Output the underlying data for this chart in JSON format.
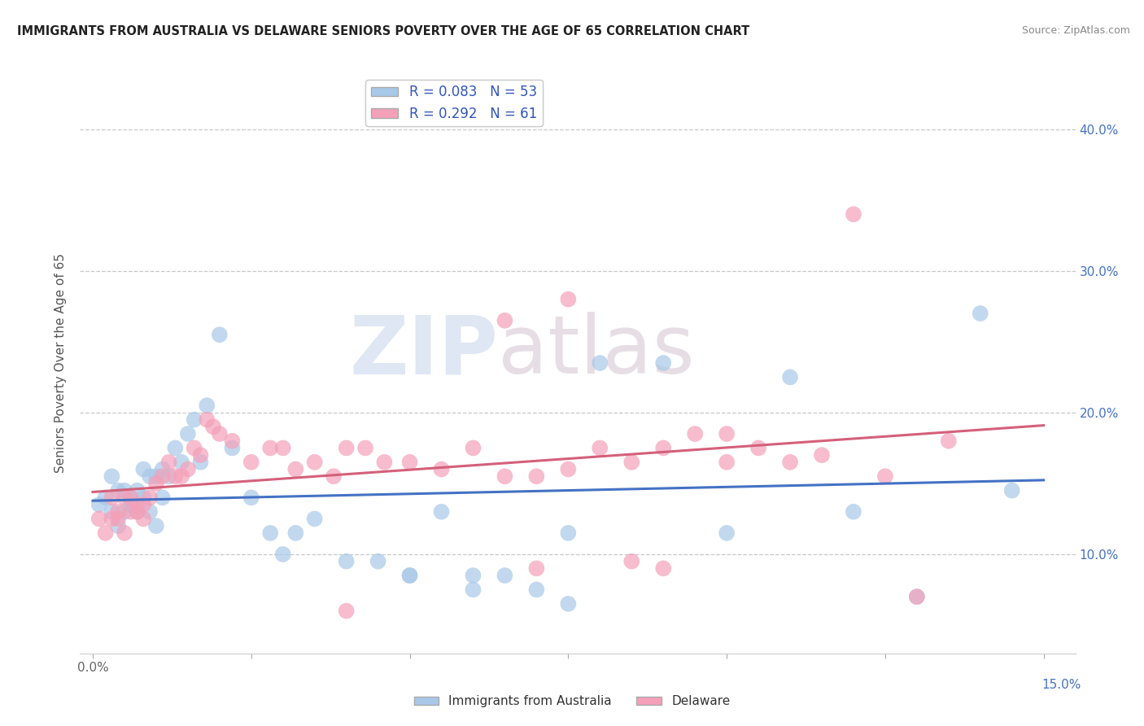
{
  "title": "IMMIGRANTS FROM AUSTRALIA VS DELAWARE SENIORS POVERTY OVER THE AGE OF 65 CORRELATION CHART",
  "source": "Source: ZipAtlas.com",
  "ylabel": "Seniors Poverty Over the Age of 65",
  "y_ticks": [
    0.1,
    0.2,
    0.3,
    0.4
  ],
  "y_tick_labels": [
    "10.0%",
    "20.0%",
    "30.0%",
    "40.0%"
  ],
  "xlim": [
    -0.002,
    0.155
  ],
  "ylim": [
    0.03,
    0.44
  ],
  "r_blue": 0.083,
  "n_blue": 53,
  "r_pink": 0.292,
  "n_pink": 61,
  "legend_label_blue": "Immigrants from Australia",
  "legend_label_pink": "Delaware",
  "color_blue": "#a8c8e8",
  "color_pink": "#f4a0b8",
  "color_blue_line": "#4472c4",
  "color_pink_line": "#d4607a",
  "blue_scatter_x": [
    0.001,
    0.002,
    0.003,
    0.003,
    0.004,
    0.004,
    0.005,
    0.005,
    0.006,
    0.006,
    0.007,
    0.007,
    0.008,
    0.008,
    0.009,
    0.009,
    0.01,
    0.01,
    0.011,
    0.011,
    0.012,
    0.013,
    0.014,
    0.015,
    0.016,
    0.017,
    0.018,
    0.02,
    0.022,
    0.025,
    0.028,
    0.03,
    0.032,
    0.035,
    0.04,
    0.045,
    0.05,
    0.055,
    0.06,
    0.065,
    0.07,
    0.075,
    0.08,
    0.09,
    0.1,
    0.11,
    0.12,
    0.13,
    0.14,
    0.145,
    0.05,
    0.06,
    0.075
  ],
  "blue_scatter_y": [
    0.135,
    0.14,
    0.13,
    0.155,
    0.12,
    0.145,
    0.13,
    0.145,
    0.135,
    0.14,
    0.13,
    0.145,
    0.14,
    0.16,
    0.13,
    0.155,
    0.12,
    0.155,
    0.14,
    0.16,
    0.155,
    0.175,
    0.165,
    0.185,
    0.195,
    0.165,
    0.205,
    0.255,
    0.175,
    0.14,
    0.115,
    0.1,
    0.115,
    0.125,
    0.095,
    0.095,
    0.085,
    0.13,
    0.085,
    0.085,
    0.075,
    0.115,
    0.235,
    0.235,
    0.115,
    0.225,
    0.13,
    0.07,
    0.27,
    0.145,
    0.085,
    0.075,
    0.065
  ],
  "pink_scatter_x": [
    0.001,
    0.002,
    0.003,
    0.003,
    0.004,
    0.004,
    0.005,
    0.005,
    0.006,
    0.006,
    0.007,
    0.007,
    0.008,
    0.008,
    0.009,
    0.01,
    0.011,
    0.012,
    0.013,
    0.014,
    0.015,
    0.016,
    0.017,
    0.018,
    0.019,
    0.02,
    0.022,
    0.025,
    0.028,
    0.03,
    0.032,
    0.035,
    0.038,
    0.04,
    0.043,
    0.046,
    0.05,
    0.055,
    0.06,
    0.065,
    0.07,
    0.075,
    0.08,
    0.085,
    0.09,
    0.095,
    0.1,
    0.105,
    0.11,
    0.115,
    0.12,
    0.125,
    0.13,
    0.135,
    0.04,
    0.085,
    0.09,
    0.1,
    0.075,
    0.065,
    0.07
  ],
  "pink_scatter_y": [
    0.125,
    0.115,
    0.125,
    0.14,
    0.13,
    0.125,
    0.14,
    0.115,
    0.14,
    0.13,
    0.13,
    0.135,
    0.125,
    0.135,
    0.14,
    0.15,
    0.155,
    0.165,
    0.155,
    0.155,
    0.16,
    0.175,
    0.17,
    0.195,
    0.19,
    0.185,
    0.18,
    0.165,
    0.175,
    0.175,
    0.16,
    0.165,
    0.155,
    0.175,
    0.175,
    0.165,
    0.165,
    0.16,
    0.175,
    0.155,
    0.155,
    0.16,
    0.175,
    0.165,
    0.09,
    0.185,
    0.165,
    0.175,
    0.165,
    0.17,
    0.34,
    0.155,
    0.07,
    0.18,
    0.06,
    0.095,
    0.175,
    0.185,
    0.28,
    0.265,
    0.09
  ]
}
